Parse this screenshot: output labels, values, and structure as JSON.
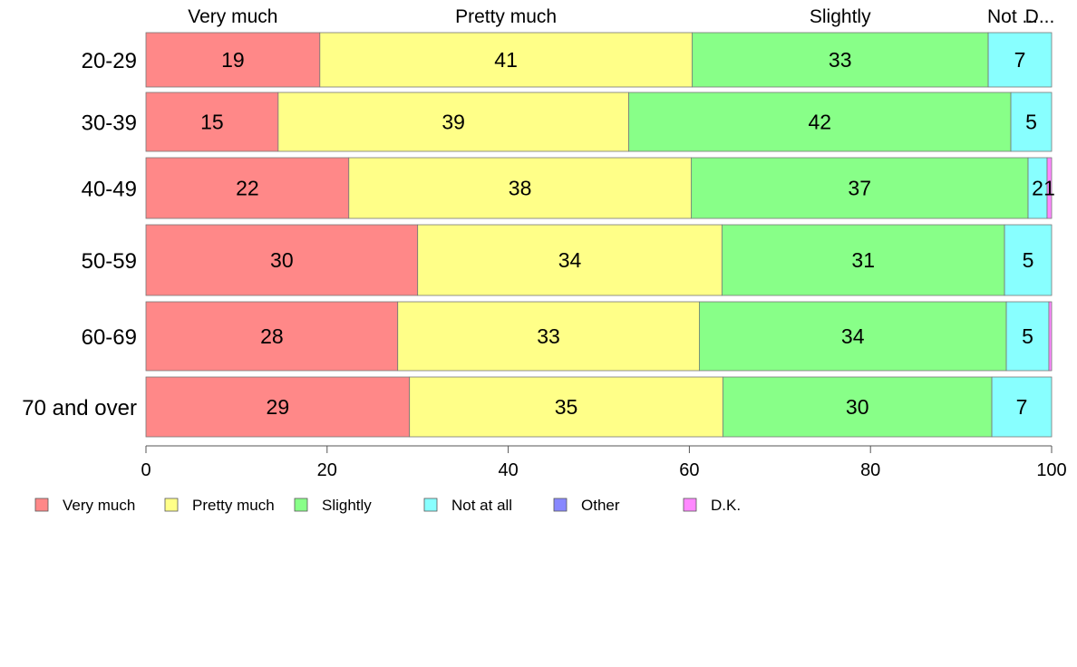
{
  "chart_data": {
    "type": "bar",
    "orientation": "horizontal",
    "stacked": true,
    "title": "",
    "xlabel": "",
    "ylabel": "",
    "xlim": [
      0,
      100
    ],
    "x_ticks": [
      0,
      20,
      40,
      60,
      80,
      100
    ],
    "grid": false,
    "legend_position": "bottom",
    "categories": [
      "20-29",
      "30-39",
      "40-49",
      "50-59",
      "60-69",
      "70 and over"
    ],
    "top_labels": [
      "Very much",
      "Pretty much",
      "Slightly",
      "Not at all",
      "D.K."
    ],
    "top_labels_shown": [
      "Very much",
      "Pretty much",
      "Slightly",
      "Not ...",
      "D..."
    ],
    "series": [
      {
        "name": "Very much",
        "color": "#ff8888",
        "values": [
          19.2,
          14.6,
          22.4,
          30.0,
          27.8,
          29.1
        ],
        "labels": [
          "19",
          "15",
          "22",
          "30",
          "28",
          "29"
        ]
      },
      {
        "name": "Pretty much",
        "color": "#ffff88",
        "values": [
          41.1,
          38.7,
          37.8,
          33.6,
          33.3,
          34.6
        ],
        "labels": [
          "41",
          "39",
          "38",
          "34",
          "33",
          "35"
        ]
      },
      {
        "name": "Slightly",
        "color": "#88ff88",
        "values": [
          32.7,
          42.2,
          37.2,
          31.2,
          33.9,
          29.7
        ],
        "labels": [
          "33",
          "42",
          "37",
          "31",
          "34",
          "30"
        ]
      },
      {
        "name": "Not at all",
        "color": "#88ffff",
        "values": [
          7.0,
          4.5,
          2.1,
          5.2,
          4.7,
          6.6
        ],
        "labels": [
          "7",
          "5",
          "2",
          "5",
          "5",
          "7"
        ]
      },
      {
        "name": "Other",
        "color": "#8888ff",
        "values": [
          0,
          0,
          0,
          0,
          0,
          0
        ],
        "labels": [
          "",
          "",
          "",
          "",
          "",
          ""
        ]
      },
      {
        "name": "D.K.",
        "color": "#ff88ff",
        "values": [
          0,
          0,
          0.5,
          0,
          0.3,
          0
        ],
        "labels": [
          "",
          "",
          "1",
          "",
          "",
          ""
        ]
      }
    ]
  }
}
